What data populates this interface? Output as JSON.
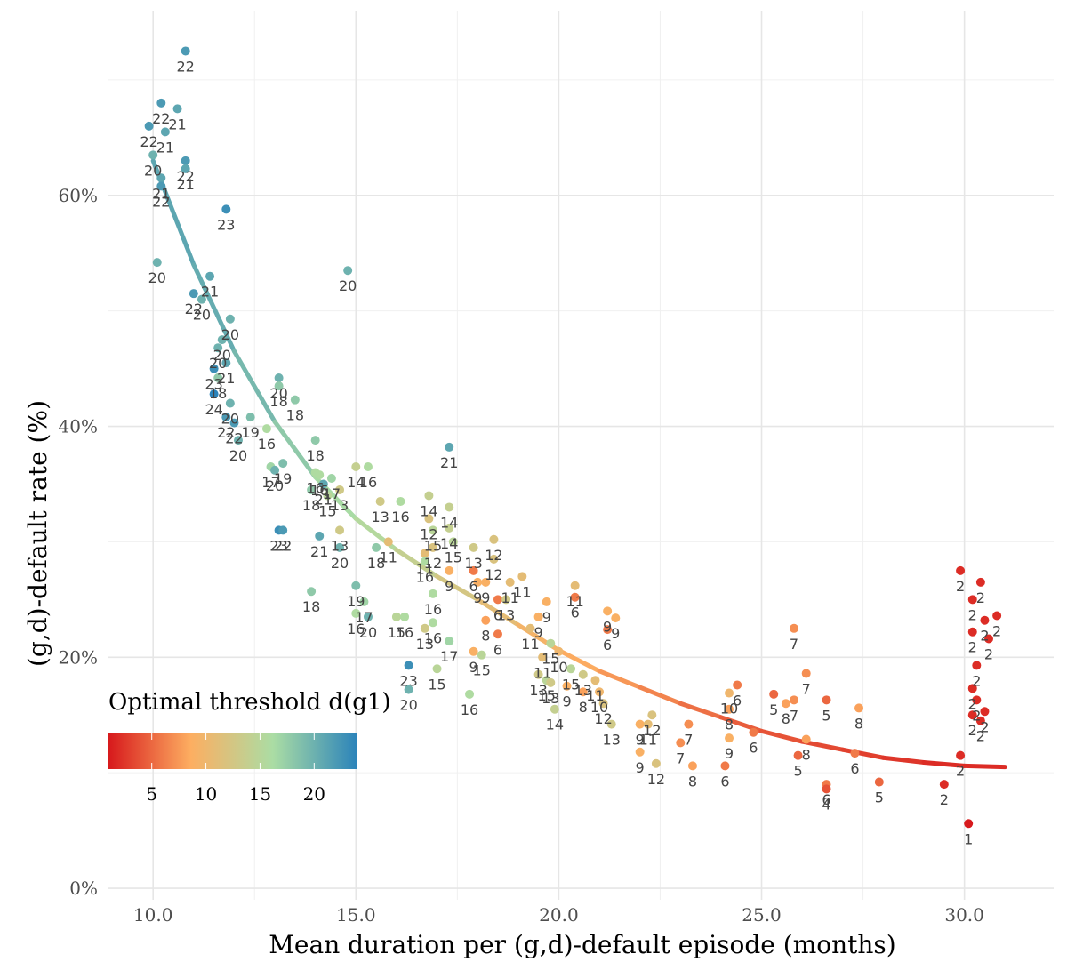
{
  "chart_data": {
    "type": "scatter",
    "xlabel": "Mean duration per (g,d)-default episode (months)",
    "ylabel": "(g,d)-default rate (%)",
    "xlim": [
      8.9,
      32.2
    ],
    "ylim": [
      -1,
      76
    ],
    "x_ticks": [
      10,
      15,
      20,
      25,
      30
    ],
    "x_tick_labels": [
      "10.0",
      "15.0",
      "20.0",
      "25.0",
      "30.0"
    ],
    "y_ticks": [
      0,
      20,
      40,
      60
    ],
    "y_tick_labels": [
      "0%",
      "20%",
      "40%",
      "60%"
    ],
    "grid": true,
    "legend": {
      "title": "Optimal threshold d(g1)",
      "position": "bottom-left",
      "range": [
        1,
        24
      ],
      "ticks": [
        5,
        10,
        15,
        20
      ],
      "tick_labels": [
        "5",
        "10",
        "15",
        "20"
      ],
      "colors": [
        "#d7191c",
        "#fdae61",
        "#abdda4",
        "#2b83ba"
      ]
    },
    "trend": {
      "x": [
        10,
        11,
        12,
        13,
        14,
        15,
        16,
        17,
        18,
        19,
        20,
        21,
        22,
        23,
        24,
        25,
        26,
        27,
        28,
        29,
        30,
        31
      ],
      "y": [
        63.0,
        54.0,
        46.5,
        40.4,
        35.6,
        32.0,
        29.3,
        27.0,
        25.0,
        22.8,
        20.6,
        18.8,
        17.4,
        16.0,
        14.8,
        13.6,
        12.7,
        12.0,
        11.3,
        10.9,
        10.6,
        10.5
      ],
      "d": [
        21,
        21,
        20,
        19,
        17,
        16,
        15,
        13,
        12,
        10,
        9,
        8,
        7,
        6,
        5,
        4,
        4,
        3,
        3,
        2,
        2,
        2
      ]
    },
    "points": [
      {
        "x": 10.8,
        "y": 72.5,
        "d": 22,
        "label": "22"
      },
      {
        "x": 10.2,
        "y": 68.0,
        "d": 22,
        "label": "22"
      },
      {
        "x": 10.6,
        "y": 67.5,
        "d": 21,
        "label": "21"
      },
      {
        "x": 9.9,
        "y": 66.0,
        "d": 22,
        "label": "22"
      },
      {
        "x": 10.3,
        "y": 65.5,
        "d": 21,
        "label": "21"
      },
      {
        "x": 10.0,
        "y": 63.5,
        "d": 20,
        "label": "20"
      },
      {
        "x": 10.8,
        "y": 63.0,
        "d": 22,
        "label": "22"
      },
      {
        "x": 10.8,
        "y": 62.3,
        "d": 21,
        "label": "21"
      },
      {
        "x": 10.2,
        "y": 61.5,
        "d": 21,
        "label": "21"
      },
      {
        "x": 10.2,
        "y": 60.8,
        "d": 22,
        "label": "22"
      },
      {
        "x": 11.8,
        "y": 58.8,
        "d": 23,
        "label": "23"
      },
      {
        "x": 10.1,
        "y": 54.2,
        "d": 20,
        "label": "20"
      },
      {
        "x": 14.8,
        "y": 53.5,
        "d": 20,
        "label": "20"
      },
      {
        "x": 11.4,
        "y": 53.0,
        "d": 21,
        "label": "21"
      },
      {
        "x": 11.0,
        "y": 51.5,
        "d": 22,
        "label": "22"
      },
      {
        "x": 11.2,
        "y": 51.0,
        "d": 20,
        "label": "20"
      },
      {
        "x": 11.9,
        "y": 49.3,
        "d": 20,
        "label": "20"
      },
      {
        "x": 11.7,
        "y": 47.5,
        "d": 20,
        "label": "20"
      },
      {
        "x": 11.6,
        "y": 46.8,
        "d": 20,
        "label": "20"
      },
      {
        "x": 11.8,
        "y": 45.5,
        "d": 21,
        "label": "21"
      },
      {
        "x": 11.5,
        "y": 45.0,
        "d": 23,
        "label": "23"
      },
      {
        "x": 11.6,
        "y": 44.2,
        "d": 18,
        "label": "18"
      },
      {
        "x": 13.1,
        "y": 44.2,
        "d": 20,
        "label": "20"
      },
      {
        "x": 13.1,
        "y": 43.5,
        "d": 18,
        "label": "18"
      },
      {
        "x": 11.5,
        "y": 42.8,
        "d": 24,
        "label": "24"
      },
      {
        "x": 11.9,
        "y": 42.0,
        "d": 20,
        "label": "20"
      },
      {
        "x": 13.5,
        "y": 42.3,
        "d": 18,
        "label": "18"
      },
      {
        "x": 11.8,
        "y": 40.8,
        "d": 22,
        "label": "22"
      },
      {
        "x": 12.4,
        "y": 40.8,
        "d": 19,
        "label": "19"
      },
      {
        "x": 12.0,
        "y": 40.3,
        "d": 22,
        "label": "22"
      },
      {
        "x": 12.8,
        "y": 39.8,
        "d": 16,
        "label": "16"
      },
      {
        "x": 12.1,
        "y": 38.8,
        "d": 20,
        "label": "20"
      },
      {
        "x": 14.0,
        "y": 38.8,
        "d": 18,
        "label": "18"
      },
      {
        "x": 17.3,
        "y": 38.2,
        "d": 21,
        "label": "21"
      },
      {
        "x": 12.9,
        "y": 36.5,
        "d": 17,
        "label": "17"
      },
      {
        "x": 13.2,
        "y": 36.8,
        "d": 19,
        "label": "19"
      },
      {
        "x": 13.0,
        "y": 36.2,
        "d": 20,
        "label": "20"
      },
      {
        "x": 14.0,
        "y": 36.0,
        "d": 16,
        "label": "16"
      },
      {
        "x": 14.1,
        "y": 35.8,
        "d": 16,
        "label": "16"
      },
      {
        "x": 15.0,
        "y": 36.5,
        "d": 14,
        "label": "14"
      },
      {
        "x": 15.3,
        "y": 36.5,
        "d": 16,
        "label": "16"
      },
      {
        "x": 14.4,
        "y": 35.5,
        "d": 17,
        "label": "17"
      },
      {
        "x": 14.2,
        "y": 35.0,
        "d": 21,
        "label": "21"
      },
      {
        "x": 13.9,
        "y": 34.5,
        "d": 18,
        "label": "18"
      },
      {
        "x": 14.6,
        "y": 34.5,
        "d": 13,
        "label": "13"
      },
      {
        "x": 14.3,
        "y": 34.0,
        "d": 15,
        "label": "15"
      },
      {
        "x": 15.6,
        "y": 33.5,
        "d": 13,
        "label": "13"
      },
      {
        "x": 16.1,
        "y": 33.5,
        "d": 16,
        "label": "16"
      },
      {
        "x": 16.8,
        "y": 34.0,
        "d": 14,
        "label": "14"
      },
      {
        "x": 17.3,
        "y": 33.0,
        "d": 14,
        "label": "14"
      },
      {
        "x": 13.1,
        "y": 31.0,
        "d": 23,
        "label": "23"
      },
      {
        "x": 13.2,
        "y": 31.0,
        "d": 22,
        "label": "22"
      },
      {
        "x": 14.6,
        "y": 31.0,
        "d": 13,
        "label": "13"
      },
      {
        "x": 16.8,
        "y": 32.0,
        "d": 12,
        "label": "12"
      },
      {
        "x": 16.9,
        "y": 31.0,
        "d": 15,
        "label": "15"
      },
      {
        "x": 17.3,
        "y": 31.2,
        "d": 14,
        "label": "14"
      },
      {
        "x": 14.1,
        "y": 30.5,
        "d": 21,
        "label": "21"
      },
      {
        "x": 14.6,
        "y": 29.5,
        "d": 20,
        "label": "20"
      },
      {
        "x": 15.5,
        "y": 29.5,
        "d": 18,
        "label": "18"
      },
      {
        "x": 15.8,
        "y": 30.0,
        "d": 11,
        "label": "11"
      },
      {
        "x": 16.7,
        "y": 29.0,
        "d": 11,
        "label": "11"
      },
      {
        "x": 16.9,
        "y": 29.5,
        "d": 12,
        "label": "12"
      },
      {
        "x": 17.4,
        "y": 30.0,
        "d": 15,
        "label": "15"
      },
      {
        "x": 17.9,
        "y": 29.5,
        "d": 13,
        "label": "13"
      },
      {
        "x": 18.4,
        "y": 30.2,
        "d": 12,
        "label": "12"
      },
      {
        "x": 16.7,
        "y": 28.3,
        "d": 16,
        "label": "16"
      },
      {
        "x": 17.3,
        "y": 27.5,
        "d": 9,
        "label": "9"
      },
      {
        "x": 17.9,
        "y": 27.5,
        "d": 6,
        "label": "6"
      },
      {
        "x": 18.4,
        "y": 28.5,
        "d": 12,
        "label": "12"
      },
      {
        "x": 18.0,
        "y": 26.5,
        "d": 9,
        "label": "9"
      },
      {
        "x": 18.2,
        "y": 26.5,
        "d": 9,
        "label": "9"
      },
      {
        "x": 18.8,
        "y": 26.5,
        "d": 11,
        "label": "11"
      },
      {
        "x": 19.1,
        "y": 27.0,
        "d": 11,
        "label": "11"
      },
      {
        "x": 18.5,
        "y": 25.0,
        "d": 6,
        "label": "6"
      },
      {
        "x": 18.7,
        "y": 25.0,
        "d": 13,
        "label": "13"
      },
      {
        "x": 15.0,
        "y": 26.2,
        "d": 19,
        "label": "19"
      },
      {
        "x": 13.9,
        "y": 25.7,
        "d": 18,
        "label": "18"
      },
      {
        "x": 16.9,
        "y": 25.5,
        "d": 16,
        "label": "16"
      },
      {
        "x": 19.7,
        "y": 24.8,
        "d": 9,
        "label": "9"
      },
      {
        "x": 20.4,
        "y": 26.2,
        "d": 11,
        "label": "11"
      },
      {
        "x": 20.4,
        "y": 25.2,
        "d": 6,
        "label": "6"
      },
      {
        "x": 15.2,
        "y": 24.8,
        "d": 17,
        "label": "17"
      },
      {
        "x": 15.3,
        "y": 23.5,
        "d": 20,
        "label": "20"
      },
      {
        "x": 15.0,
        "y": 23.8,
        "d": 16,
        "label": "16"
      },
      {
        "x": 16.0,
        "y": 23.5,
        "d": 15,
        "label": "15"
      },
      {
        "x": 16.2,
        "y": 23.5,
        "d": 16,
        "label": "16"
      },
      {
        "x": 16.9,
        "y": 23.0,
        "d": 16,
        "label": "16"
      },
      {
        "x": 16.7,
        "y": 22.5,
        "d": 13,
        "label": "13"
      },
      {
        "x": 18.2,
        "y": 23.2,
        "d": 8,
        "label": "8"
      },
      {
        "x": 18.5,
        "y": 22.0,
        "d": 6,
        "label": "6"
      },
      {
        "x": 19.5,
        "y": 23.5,
        "d": 9,
        "label": "9"
      },
      {
        "x": 19.3,
        "y": 22.5,
        "d": 11,
        "label": "11"
      },
      {
        "x": 21.2,
        "y": 24.0,
        "d": 9,
        "label": "9"
      },
      {
        "x": 21.4,
        "y": 23.4,
        "d": 9,
        "label": "9"
      },
      {
        "x": 21.2,
        "y": 22.4,
        "d": 6,
        "label": "6"
      },
      {
        "x": 17.3,
        "y": 21.4,
        "d": 17,
        "label": "17"
      },
      {
        "x": 17.9,
        "y": 20.5,
        "d": 9,
        "label": "9"
      },
      {
        "x": 18.1,
        "y": 20.2,
        "d": 15,
        "label": "15"
      },
      {
        "x": 19.6,
        "y": 20.0,
        "d": 11,
        "label": "11"
      },
      {
        "x": 19.8,
        "y": 21.2,
        "d": 15,
        "label": "15"
      },
      {
        "x": 20.0,
        "y": 20.5,
        "d": 10,
        "label": "10"
      },
      {
        "x": 16.3,
        "y": 19.3,
        "d": 23,
        "label": "23"
      },
      {
        "x": 17.0,
        "y": 19.0,
        "d": 15,
        "label": "15"
      },
      {
        "x": 19.5,
        "y": 18.5,
        "d": 13,
        "label": "13"
      },
      {
        "x": 19.7,
        "y": 18.0,
        "d": 15,
        "label": "15"
      },
      {
        "x": 19.8,
        "y": 17.8,
        "d": 13,
        "label": "13"
      },
      {
        "x": 20.3,
        "y": 19.0,
        "d": 15,
        "label": "15"
      },
      {
        "x": 20.6,
        "y": 18.5,
        "d": 13,
        "label": "13"
      },
      {
        "x": 20.9,
        "y": 18.0,
        "d": 11,
        "label": "11"
      },
      {
        "x": 20.2,
        "y": 17.5,
        "d": 9,
        "label": "9"
      },
      {
        "x": 20.6,
        "y": 17.0,
        "d": 8,
        "label": "8"
      },
      {
        "x": 21.0,
        "y": 17.0,
        "d": 10,
        "label": "10"
      },
      {
        "x": 16.3,
        "y": 17.2,
        "d": 20,
        "label": "20"
      },
      {
        "x": 17.8,
        "y": 16.8,
        "d": 16,
        "label": "16"
      },
      {
        "x": 19.9,
        "y": 15.5,
        "d": 14,
        "label": "14"
      },
      {
        "x": 21.1,
        "y": 16.0,
        "d": 12,
        "label": "12"
      },
      {
        "x": 21.3,
        "y": 14.2,
        "d": 13,
        "label": "13"
      },
      {
        "x": 22.0,
        "y": 14.2,
        "d": 9,
        "label": "9"
      },
      {
        "x": 22.3,
        "y": 15.0,
        "d": 12,
        "label": "12"
      },
      {
        "x": 22.2,
        "y": 14.2,
        "d": 11,
        "label": "11"
      },
      {
        "x": 22.0,
        "y": 11.8,
        "d": 9,
        "label": "9"
      },
      {
        "x": 22.4,
        "y": 10.8,
        "d": 12,
        "label": "12"
      },
      {
        "x": 23.0,
        "y": 12.6,
        "d": 7,
        "label": "7"
      },
      {
        "x": 23.2,
        "y": 14.2,
        "d": 7,
        "label": "7"
      },
      {
        "x": 23.3,
        "y": 10.6,
        "d": 8,
        "label": "8"
      },
      {
        "x": 24.2,
        "y": 16.9,
        "d": 10,
        "label": "10"
      },
      {
        "x": 24.4,
        "y": 17.6,
        "d": 6,
        "label": "6"
      },
      {
        "x": 24.2,
        "y": 15.5,
        "d": 8,
        "label": "8"
      },
      {
        "x": 24.2,
        "y": 13.0,
        "d": 9,
        "label": "9"
      },
      {
        "x": 24.1,
        "y": 10.6,
        "d": 6,
        "label": "6"
      },
      {
        "x": 25.3,
        "y": 16.8,
        "d": 5,
        "label": "5"
      },
      {
        "x": 25.6,
        "y": 16.0,
        "d": 8,
        "label": "8"
      },
      {
        "x": 25.8,
        "y": 16.3,
        "d": 7,
        "label": "7"
      },
      {
        "x": 25.8,
        "y": 22.5,
        "d": 7,
        "label": "7"
      },
      {
        "x": 26.1,
        "y": 18.6,
        "d": 7,
        "label": "7"
      },
      {
        "x": 26.6,
        "y": 16.3,
        "d": 5,
        "label": "5"
      },
      {
        "x": 24.8,
        "y": 13.5,
        "d": 6,
        "label": "6"
      },
      {
        "x": 26.1,
        "y": 12.9,
        "d": 8,
        "label": "8"
      },
      {
        "x": 25.9,
        "y": 11.5,
        "d": 5,
        "label": "5"
      },
      {
        "x": 27.4,
        "y": 15.6,
        "d": 8,
        "label": "8"
      },
      {
        "x": 27.3,
        "y": 11.7,
        "d": 6,
        "label": "6"
      },
      {
        "x": 26.6,
        "y": 9.0,
        "d": 6,
        "label": "6"
      },
      {
        "x": 26.6,
        "y": 8.6,
        "d": 4,
        "label": "4"
      },
      {
        "x": 27.9,
        "y": 9.2,
        "d": 5,
        "label": "5"
      },
      {
        "x": 29.5,
        "y": 9.0,
        "d": 2,
        "label": "2"
      },
      {
        "x": 29.9,
        "y": 11.5,
        "d": 2,
        "label": "2"
      },
      {
        "x": 29.9,
        "y": 27.5,
        "d": 2,
        "label": "2"
      },
      {
        "x": 30.4,
        "y": 26.5,
        "d": 2,
        "label": "2"
      },
      {
        "x": 30.2,
        "y": 25.0,
        "d": 2,
        "label": "2"
      },
      {
        "x": 30.5,
        "y": 23.2,
        "d": 2,
        "label": "2"
      },
      {
        "x": 30.8,
        "y": 23.6,
        "d": 2,
        "label": "2"
      },
      {
        "x": 30.2,
        "y": 22.2,
        "d": 2,
        "label": "2"
      },
      {
        "x": 30.6,
        "y": 21.6,
        "d": 2,
        "label": "2"
      },
      {
        "x": 30.3,
        "y": 19.3,
        "d": 2,
        "label": "2"
      },
      {
        "x": 30.2,
        "y": 17.3,
        "d": 2,
        "label": "2"
      },
      {
        "x": 30.3,
        "y": 16.3,
        "d": 2,
        "label": "2"
      },
      {
        "x": 30.5,
        "y": 15.3,
        "d": 2,
        "label": "2"
      },
      {
        "x": 30.2,
        "y": 15.0,
        "d": 2,
        "label": "2"
      },
      {
        "x": 30.4,
        "y": 14.5,
        "d": 2,
        "label": "2"
      },
      {
        "x": 30.1,
        "y": 5.6,
        "d": 1,
        "label": "1"
      }
    ]
  }
}
